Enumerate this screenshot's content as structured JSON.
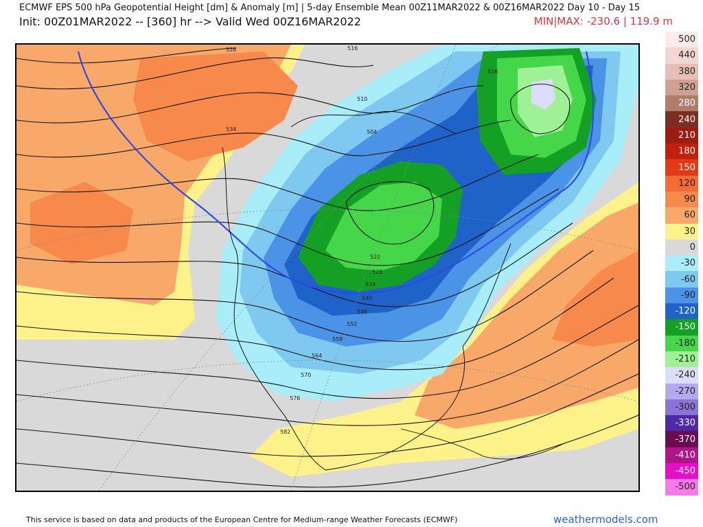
{
  "header": {
    "line1": "ECMWF EPS 500 hPa Geopotential Height [dm] & Anomaly [m] | 5-day Ensemble Mean 00Z11MAR2022 & 00Z16MAR2022   Day 10 - Day 15",
    "line2": "Init: 00Z01MAR2022 -- [360] hr --> Valid Wed 00Z16MAR2022",
    "minmax": "MIN|MAX: -230.6 | 119.9 m"
  },
  "colorbar": [
    {
      "label": "500",
      "color": "#fbeceb"
    },
    {
      "label": "440",
      "color": "#f3d6d2"
    },
    {
      "label": "380",
      "color": "#e7bfb6"
    },
    {
      "label": "320",
      "color": "#cfa193"
    },
    {
      "label": "280",
      "color": "#b07d6c"
    },
    {
      "label": "240",
      "color": "#7b2f22"
    },
    {
      "label": "210",
      "color": "#9b1c10"
    },
    {
      "label": "180",
      "color": "#c2200d"
    },
    {
      "label": "150",
      "color": "#e23a17"
    },
    {
      "label": "120",
      "color": "#f26a35"
    },
    {
      "label": "90",
      "color": "#f7894a"
    },
    {
      "label": "60",
      "color": "#f8a868"
    },
    {
      "label": "30",
      "color": "#fdf28a"
    },
    {
      "label": "0",
      "color": "#d9d9d9"
    },
    {
      "label": "-30",
      "color": "#a8edf7"
    },
    {
      "label": "-60",
      "color": "#7fc8f0"
    },
    {
      "label": "-90",
      "color": "#4a93e6"
    },
    {
      "label": "-120",
      "color": "#1f63c8"
    },
    {
      "label": "-150",
      "color": "#14a025"
    },
    {
      "label": "-180",
      "color": "#46d64a"
    },
    {
      "label": "-210",
      "color": "#9ef295"
    },
    {
      "label": "-240",
      "color": "#dcdcfb"
    },
    {
      "label": "-270",
      "color": "#b3a9ef"
    },
    {
      "label": "-300",
      "color": "#8a74d6"
    },
    {
      "label": "-330",
      "color": "#4e2aa6"
    },
    {
      "label": "-370",
      "color": "#6a0c52"
    },
    {
      "label": "-410",
      "color": "#b0158a"
    },
    {
      "label": "-450",
      "color": "#e60fc9"
    },
    {
      "label": "-500",
      "color": "#f57ae8"
    }
  ],
  "contour_labels": [
    "528",
    "516",
    "534",
    "510",
    "504",
    "516",
    "522",
    "528",
    "534",
    "540",
    "546",
    "552",
    "558",
    "564",
    "570",
    "576",
    "582"
  ],
  "footer": {
    "credit": "This service is based on data and products of the European Centre for Medium-range Weather Forecasts (ECMWF)",
    "brand": "weathermodels.com"
  }
}
